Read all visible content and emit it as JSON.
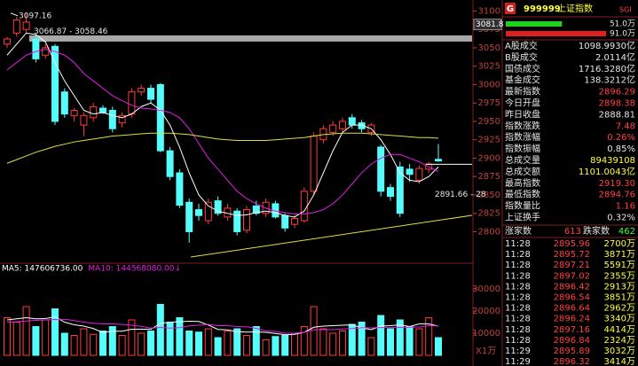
{
  "chart_data": [
    {
      "type": "candlestick",
      "up_color": "#ff3c3c",
      "down_color": "#54fcfc",
      "open": [
        3055,
        3070,
        3075,
        3062,
        3040,
        3052,
        2990,
        2958,
        2945,
        2955,
        2968,
        2965,
        2948,
        2960,
        2990,
        2995,
        3000,
        2910,
        2880,
        2840,
        2830,
        2815,
        2842,
        2820,
        2828,
        2802,
        2835,
        2825,
        2838,
        2822,
        2810,
        2815,
        2855,
        2925,
        2935,
        2940,
        2955,
        2948,
        2935,
        2915,
        2860,
        2888,
        2885,
        2870,
        2885,
        2898.38
      ],
      "high": [
        3065,
        3092,
        3097.16,
        3068,
        3055,
        3055,
        2995,
        2968,
        2962,
        2975,
        2972,
        2970,
        2962,
        2995,
        3000,
        3000,
        3002,
        2915,
        2885,
        2845,
        2838,
        2845,
        2848,
        2838,
        2832,
        2835,
        2842,
        2845,
        2842,
        2825,
        2822,
        2860,
        2935,
        2945,
        2950,
        2955,
        2960,
        2952,
        2948,
        2918,
        2865,
        2895,
        2892,
        2890,
        2895,
        2919.3
      ],
      "low": [
        3050,
        3065,
        3070,
        3030,
        3035,
        2945,
        2955,
        2950,
        2930,
        2950,
        2960,
        2935,
        2942,
        2955,
        2985,
        2975,
        2908,
        2870,
        2832,
        2785,
        2815,
        2810,
        2822,
        2815,
        2795,
        2798,
        2822,
        2820,
        2818,
        2800,
        2805,
        2812,
        2850,
        2920,
        2930,
        2935,
        2940,
        2935,
        2930,
        2848,
        2842,
        2820,
        2868,
        2865,
        2880,
        2894.76
      ],
      "close": [
        3062,
        3088,
        3085,
        3035,
        3050,
        2950,
        2960,
        2965,
        2958,
        2970,
        2962,
        2940,
        2958,
        2990,
        2995,
        2980,
        2910,
        2875,
        2836,
        2800,
        2822,
        2840,
        2825,
        2832,
        2800,
        2830,
        2825,
        2840,
        2820,
        2805,
        2818,
        2855,
        2930,
        2940,
        2945,
        2950,
        2945,
        2940,
        2945,
        2855,
        2848,
        2825,
        2878,
        2886,
        2892,
        2896.29
      ],
      "lines": [
        {
          "color": "#ffffff",
          "values": [
            3040,
            3055,
            3070,
            3068,
            3058,
            3030,
            3005,
            2985,
            2965,
            2960,
            2962,
            2958,
            2955,
            2960,
            2970,
            2975,
            2965,
            2945,
            2915,
            2880,
            2850,
            2835,
            2828,
            2825,
            2822,
            2823,
            2826,
            2828,
            2826,
            2822,
            2820,
            2828,
            2850,
            2880,
            2910,
            2935,
            2945,
            2945,
            2940,
            2925,
            2905,
            2880,
            2870,
            2868,
            2875,
            2888
          ]
        },
        {
          "color": "#e020e0",
          "values": [
            3020,
            3030,
            3040,
            3045,
            3048,
            3045,
            3040,
            3030,
            3015,
            3005,
            2995,
            2985,
            2978,
            2972,
            2968,
            2967,
            2965,
            2962,
            2955,
            2940,
            2920,
            2900,
            2885,
            2870,
            2855,
            2845,
            2838,
            2832,
            2828,
            2826,
            2824,
            2824,
            2826,
            2830,
            2838,
            2850,
            2865,
            2880,
            2892,
            2900,
            2905,
            2905,
            2900,
            2895,
            2888,
            2882
          ]
        },
        {
          "color": "#e0e040",
          "values": [
            2893,
            2898,
            2903,
            2908,
            2912,
            2916,
            2919,
            2922,
            2924,
            2926,
            2928,
            2930,
            2931,
            2932,
            2933,
            2934,
            2934,
            2934,
            2933,
            2932,
            2930,
            2928,
            2926,
            2925,
            2924,
            2924,
            2924,
            2924,
            2925,
            2926,
            2927,
            2928,
            2930,
            2932,
            2933,
            2934,
            2934,
            2934,
            2933,
            2932,
            2931,
            2930,
            2929,
            2928,
            2928,
            2927
          ]
        }
      ],
      "ylim": [
        2765,
        3115
      ],
      "yticks": [
        2800,
        2825,
        2850,
        2875,
        2900,
        2925,
        2950,
        2975,
        3000,
        3025,
        3050,
        3075,
        3100
      ],
      "cursor": 3081.8,
      "high_mark": {
        "value": 3097.16,
        "label": "3097.16"
      },
      "band": {
        "values": [
          3066.87,
          3058.46
        ],
        "label": "3066.87 - 3058.46"
      },
      "level": {
        "value": 2891.66,
        "label": "2891.66 - 28"
      }
    },
    {
      "type": "volume",
      "values": [
        17000,
        15000,
        22000,
        13000,
        16000,
        21000,
        10000,
        9000,
        12000,
        9500,
        11000,
        13000,
        9000,
        16000,
        10000,
        11000,
        23000,
        15000,
        17000,
        11000,
        10500,
        12000,
        8000,
        11000,
        12000,
        9000,
        13000,
        7000,
        8500,
        9000,
        10000,
        13000,
        22000,
        12000,
        10000,
        11000,
        14000,
        15000,
        8000,
        18000,
        12000,
        16000,
        13000,
        12000,
        17000,
        8000
      ],
      "series": [
        {
          "name": "MA5: 147606736.00",
          "color": "#ffffff",
          "values": [
            16000,
            16500,
            17000,
            16500,
            16600,
            17400,
            15000,
            13800,
            13200,
            12100,
            10300,
            10900,
            10900,
            11800,
            11800,
            11800,
            14400,
            15000,
            15200,
            15400,
            15300,
            13700,
            11700,
            11500,
            10700,
            10500,
            10600,
            10400,
            9900,
            9300,
            9500,
            10400,
            12700,
            13200,
            13400,
            13600,
            13800,
            12400,
            11600,
            13200,
            13400,
            13800,
            13000,
            14200,
            14200,
            13200
          ]
        },
        {
          "name": "MA10: 144568080.00↓",
          "color": "#e020e0",
          "values": [
            15000,
            15200,
            15500,
            15800,
            16000,
            16200,
            16300,
            15700,
            15000,
            14500,
            14200,
            14200,
            14000,
            13600,
            13100,
            12300,
            12600,
            12300,
            12500,
            13300,
            13600,
            14000,
            13400,
            13400,
            13000,
            12900,
            12200,
            11100,
            10800,
            10000,
            10000,
            10400,
            11600,
            11600,
            11600,
            11900,
            12100,
            12500,
            12400,
            12600,
            12500,
            12600,
            12700,
            12800,
            13400,
            13300
          ]
        }
      ],
      "ylim": [
        0,
        36000
      ],
      "yticks": [
        10000,
        20000,
        30000
      ],
      "unit_label": "X1万"
    }
  ],
  "header": {
    "badge": "G",
    "code": "999999",
    "name": "上证指数",
    "tag": "SGI"
  },
  "balance": [
    {
      "value": 51.0,
      "label": "51.0万",
      "color": "#20d020"
    },
    {
      "value": 91.0,
      "label": "91.0万",
      "color": "#e02020"
    }
  ],
  "summary": [
    [
      "A股成交",
      "1098.9930亿"
    ],
    [
      "B股成交",
      "2.0114亿"
    ],
    [
      "国债成交",
      "1716.3280亿"
    ],
    [
      "基金成交",
      "138.3212亿"
    ],
    [
      "最新指数",
      "2896.29"
    ],
    [
      "今日开盘",
      "2898.38"
    ],
    [
      "昨日收盘",
      "2888.81"
    ],
    [
      "指数涨跌",
      "7.48"
    ],
    [
      "指数涨幅",
      "0.26%"
    ],
    [
      "指数振幅",
      "0.85%"
    ],
    [
      "总成交量",
      "89439108"
    ],
    [
      "总成交额",
      "1101.0043亿"
    ],
    [
      "最高指数",
      "2919.30"
    ],
    [
      "最低指数",
      "2894.76"
    ],
    [
      "指数量比",
      "1.16"
    ],
    [
      "上证换手",
      "0.32%"
    ]
  ],
  "breadth": {
    "up_label": "涨家数",
    "up": "613",
    "down_label": "跌家数",
    "down": "462"
  },
  "trades": [
    [
      "11:28",
      "2895.96",
      "2700万"
    ],
    [
      "11:28",
      "2895.72",
      "3871万"
    ],
    [
      "11:28",
      "2897.21",
      "5591万"
    ],
    [
      "11:28",
      "2897.02",
      "2355万"
    ],
    [
      "11:28",
      "2896.42",
      "2913万"
    ],
    [
      "11:28",
      "2896.54",
      "3851万"
    ],
    [
      "11:28",
      "2896.64",
      "2962万"
    ],
    [
      "11:28",
      "2896.24",
      "3340万"
    ],
    [
      "11:28",
      "2897.16",
      "4414万"
    ],
    [
      "11:28",
      "2896.84",
      "2324万"
    ],
    [
      "11:29",
      "2895.89",
      "3032万"
    ],
    [
      "11:29",
      "2896.32",
      "3414万"
    ]
  ]
}
